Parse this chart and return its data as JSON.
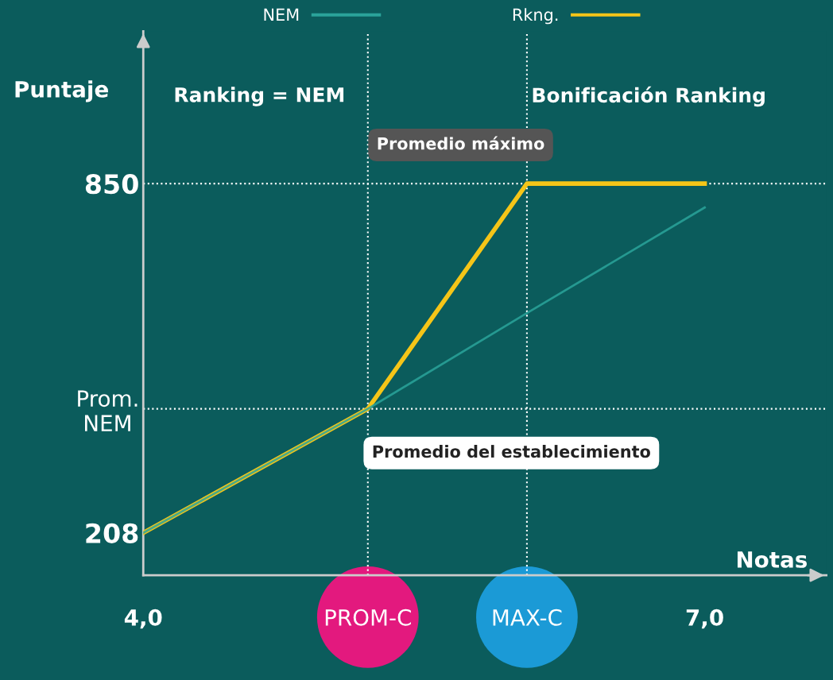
{
  "chart_data": {
    "type": "line",
    "xlabel": "Notas",
    "ylabel": "Puntaje",
    "x": [
      4.0,
      5.2,
      6.05,
      7.0
    ],
    "series": [
      {
        "name": "NEM",
        "color": "#2aa39a",
        "values": [
          208,
          436,
          612,
          806
        ]
      },
      {
        "name": "Rkng.",
        "color": "#f5c518",
        "values": [
          208,
          436,
          850,
          850
        ]
      }
    ],
    "xlim": [
      4.0,
      7.65
    ],
    "ylim": [
      130,
      1130
    ],
    "xticks": [
      {
        "value": 4.0,
        "label": "4,0"
      },
      {
        "value": 5.2,
        "label": "PROM-C"
      },
      {
        "value": 6.05,
        "label": "MAX-C"
      },
      {
        "value": 7.0,
        "label": "7,0"
      }
    ],
    "yticks": [
      208,
      {
        "value": 436,
        "label": "Prom.\nNEM"
      },
      850
    ],
    "ref_lines": [
      {
        "axis": "y",
        "value": 850,
        "color": "#ffffff",
        "line_style": "dotted"
      },
      {
        "axis": "y",
        "value": 436,
        "color": "#ffffff",
        "line_style": "dotted"
      },
      {
        "axis": "x",
        "value": 5.2,
        "color": "#ffffff",
        "line_style": "dotted"
      },
      {
        "axis": "x",
        "value": 6.05,
        "color": "#ffffff",
        "line_style": "dotted"
      }
    ],
    "annotations": [
      "Ranking = NEM",
      "Bonificación Ranking",
      {
        "text": "Promedio máximo",
        "x": 6.05,
        "y": 850
      },
      {
        "text": "Promedio del establecimiento",
        "x": 5.2,
        "y": 436
      }
    ],
    "legend": "top",
    "grid": false,
    "marker": "none",
    "line_style": "solid"
  }
}
